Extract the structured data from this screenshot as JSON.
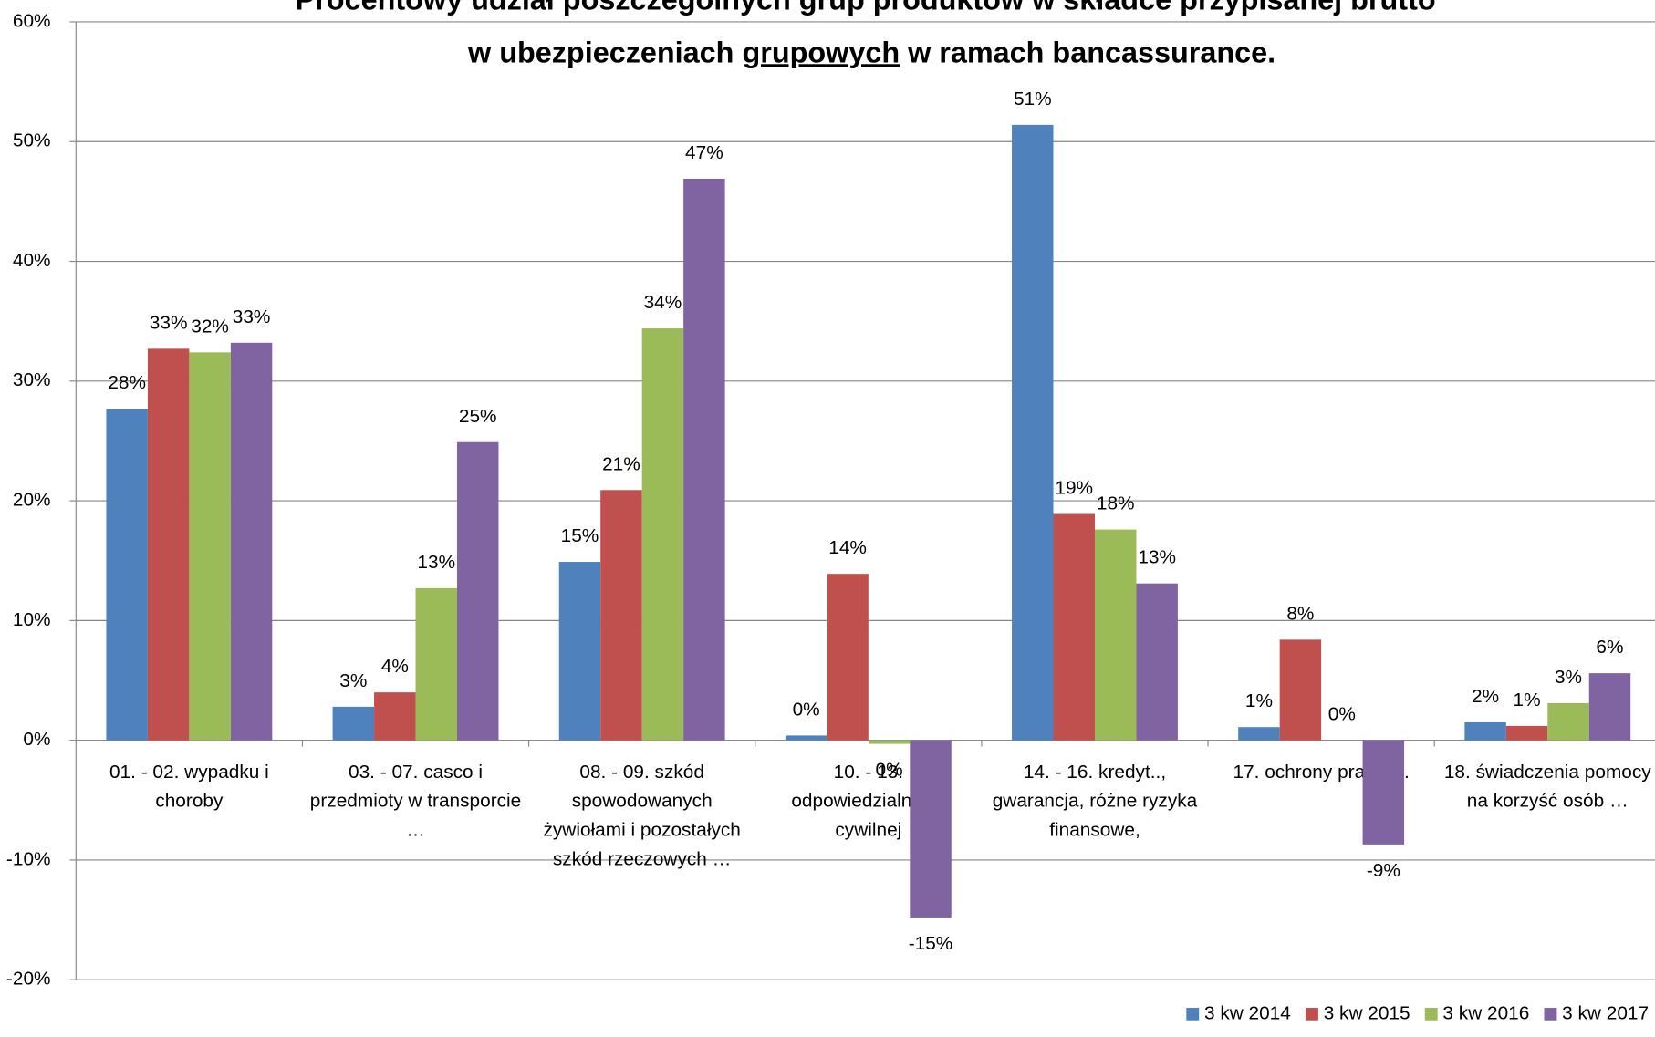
{
  "chart_data": {
    "type": "bar",
    "title": {
      "line1": "Procentowy udział poszczególnych grup produktów w składce przypisanej brutto",
      "line2": [
        "w ubezpieczeniach",
        "grupowych",
        "w ramach bancassurance."
      ]
    },
    "categories": [
      "01. - 02. wypadku i choroby",
      "03. - 07. casco i przedmioty w transporcie …",
      "08. - 09. szkód spowodowanych żywiołami i pozostałych szkód rzeczowych …",
      "10. - 13. odpowiedzialności cywilnej",
      "14. - 16. kredyt.., gwarancja,  różne ryzyka finansowe,",
      "17. ochrony prawnej.",
      "18. świadczenia pomocy na korzyść osób …"
    ],
    "series": [
      {
        "name": "3 kw 2014",
        "color": "#4f81bd",
        "values": [
          27.7,
          2.8,
          14.9,
          0.4,
          51.4,
          1.1,
          1.5
        ],
        "value_labels": [
          "28%",
          "3%",
          "15%",
          "0%",
          "51%",
          "1%",
          "2%"
        ]
      },
      {
        "name": "3 kw 2015",
        "color": "#c0504d",
        "values": [
          32.7,
          4.0,
          20.9,
          13.9,
          18.9,
          8.4,
          1.2
        ],
        "value_labels": [
          "33%",
          "4%",
          "21%",
          "14%",
          "19%",
          "8%",
          "1%"
        ]
      },
      {
        "name": "3 kw 2016",
        "color": "#9bbb59",
        "values": [
          32.4,
          12.7,
          34.4,
          -0.3,
          17.6,
          0,
          3.1
        ],
        "value_labels": [
          "32%",
          "13%",
          "34%",
          "0%",
          "18%",
          "0%",
          "3%"
        ]
      },
      {
        "name": "3 kw 2017",
        "color": "#8064a2",
        "values": [
          33.2,
          24.9,
          46.9,
          -14.8,
          13.1,
          -8.7,
          5.6
        ],
        "value_labels": [
          "33%",
          "25%",
          "47%",
          "-15%",
          "13%",
          "-9%",
          "6%"
        ]
      }
    ],
    "ylim": [
      -20,
      60
    ],
    "yticks": [
      {
        "value": -20,
        "label": "-20%"
      },
      {
        "value": -10,
        "label": "-10%"
      },
      {
        "value": 0,
        "label": "0%"
      },
      {
        "value": 10,
        "label": "10%"
      },
      {
        "value": 20,
        "label": "20%"
      },
      {
        "value": 30,
        "label": "30%"
      },
      {
        "value": 40,
        "label": "40%"
      },
      {
        "value": 50,
        "label": "50%"
      },
      {
        "value": 60,
        "label": "60%"
      }
    ],
    "grid": true,
    "legend": "bottom-right"
  }
}
